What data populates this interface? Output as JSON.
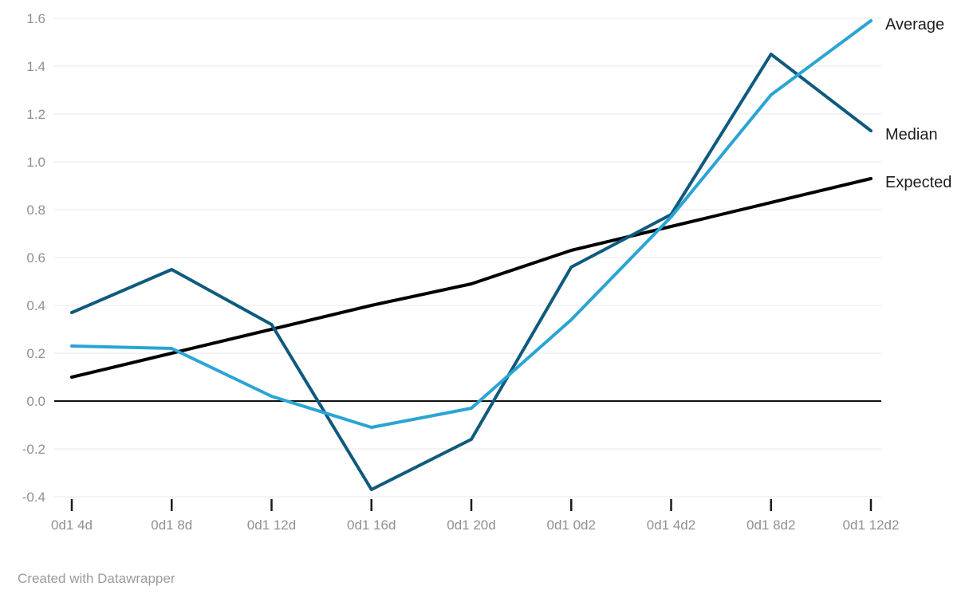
{
  "page": {
    "background": "#ffffff"
  },
  "footer": {
    "credit": "Created with Datawrapper"
  },
  "chart_data": {
    "type": "line",
    "categories": [
      "0d1 4d",
      "0d1 8d",
      "0d1 12d",
      "0d1 16d",
      "0d1 20d",
      "0d1 0d2",
      "0d1 4d2",
      "0d1 8d2",
      "0d1 12d2"
    ],
    "series": [
      {
        "name": "Expected",
        "color": "#000000",
        "values": [
          0.1,
          0.2,
          0.3,
          0.4,
          0.49,
          0.63,
          0.73,
          0.83,
          0.93
        ]
      },
      {
        "name": "Median",
        "color": "#0f5a7d",
        "values": [
          0.37,
          0.55,
          0.32,
          -0.37,
          -0.16,
          0.56,
          0.78,
          1.45,
          1.13
        ]
      },
      {
        "name": "Average",
        "color": "#2aa4d5",
        "values": [
          0.23,
          0.22,
          0.02,
          -0.11,
          -0.03,
          0.34,
          0.77,
          1.28,
          1.59
        ]
      }
    ],
    "title": "",
    "xlabel": "",
    "ylabel": "",
    "ylim": [
      -0.4,
      1.6
    ],
    "ytick_step": 0.2,
    "y_tick_labels": [
      "1.6",
      "1.4",
      "1.2",
      "1.0",
      "0.8",
      "0.6",
      "0.4",
      "0.2",
      "0.0",
      "-0.2",
      "-0.4"
    ],
    "grid": "horizontal",
    "zero_line": true,
    "legend_position": "direct-labels-right",
    "colors": {
      "gridline": "#e8e8e8",
      "zero_line": "#111111",
      "tick_mark": "#1a1a1a",
      "axis_label": "#909090",
      "legend_label": "#1d1d1d"
    }
  }
}
